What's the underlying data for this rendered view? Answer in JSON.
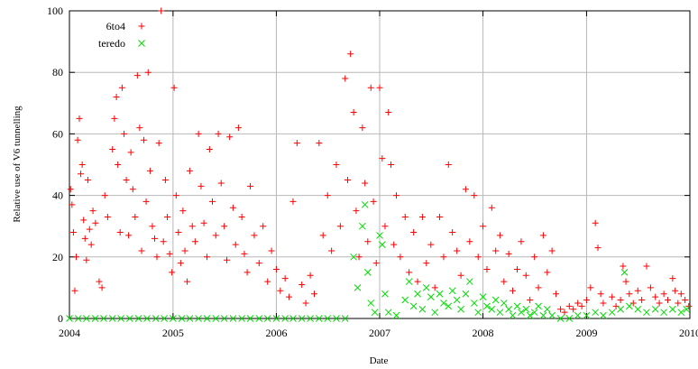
{
  "chart_data": {
    "type": "scatter",
    "title": "",
    "xlabel": "Date",
    "ylabel": "Relative use of V6 tunnelling",
    "xlim": [
      "2004-01-01",
      "2010-01-01"
    ],
    "ylim": [
      0,
      100
    ],
    "x_ticks": [
      "2004",
      "2005",
      "2006",
      "2007",
      "2008",
      "2009",
      "2010"
    ],
    "y_ticks": [
      "0",
      "20",
      "40",
      "60",
      "80",
      "100"
    ],
    "grid": true,
    "legend_position": "top-left",
    "series": [
      {
        "name": "6to4",
        "marker": "plus",
        "color": "#ff0000",
        "points": [
          [
            "2004-01-05",
            42
          ],
          [
            "2004-01-10",
            37
          ],
          [
            "2004-01-15",
            28
          ],
          [
            "2004-01-20",
            9
          ],
          [
            "2004-01-25",
            20
          ],
          [
            "2004-01-30",
            58
          ],
          [
            "2004-02-05",
            65
          ],
          [
            "2004-02-10",
            47
          ],
          [
            "2004-02-15",
            50
          ],
          [
            "2004-02-20",
            32
          ],
          [
            "2004-02-25",
            26
          ],
          [
            "2004-03-01",
            19
          ],
          [
            "2004-03-06",
            45
          ],
          [
            "2004-03-12",
            29
          ],
          [
            "2004-03-18",
            24
          ],
          [
            "2004-03-24",
            35
          ],
          [
            "2004-04-02",
            31
          ],
          [
            "2004-04-15",
            12
          ],
          [
            "2004-04-25",
            10
          ],
          [
            "2004-05-05",
            40
          ],
          [
            "2004-05-15",
            33
          ],
          [
            "2004-06-01",
            55
          ],
          [
            "2004-06-08",
            65
          ],
          [
            "2004-06-15",
            72
          ],
          [
            "2004-06-20",
            50
          ],
          [
            "2004-06-28",
            28
          ],
          [
            "2004-07-05",
            75
          ],
          [
            "2004-07-12",
            60
          ],
          [
            "2004-07-20",
            45
          ],
          [
            "2004-07-28",
            27
          ],
          [
            "2004-08-05",
            54
          ],
          [
            "2004-08-12",
            42
          ],
          [
            "2004-08-20",
            33
          ],
          [
            "2004-08-28",
            79
          ],
          [
            "2004-09-05",
            62
          ],
          [
            "2004-09-12",
            22
          ],
          [
            "2004-09-20",
            58
          ],
          [
            "2004-09-28",
            38
          ],
          [
            "2004-10-05",
            80
          ],
          [
            "2004-10-12",
            48
          ],
          [
            "2004-10-20",
            30
          ],
          [
            "2004-10-28",
            26
          ],
          [
            "2004-11-05",
            20
          ],
          [
            "2004-11-12",
            57
          ],
          [
            "2004-11-20",
            100
          ],
          [
            "2004-11-28",
            25
          ],
          [
            "2004-12-05",
            45
          ],
          [
            "2004-12-12",
            33
          ],
          [
            "2004-12-20",
            21
          ],
          [
            "2004-12-28",
            15
          ],
          [
            "2005-01-05",
            75
          ],
          [
            "2005-01-12",
            40
          ],
          [
            "2005-01-20",
            28
          ],
          [
            "2005-01-28",
            18
          ],
          [
            "2005-02-05",
            35
          ],
          [
            "2005-02-12",
            22
          ],
          [
            "2005-02-20",
            12
          ],
          [
            "2005-03-01",
            48
          ],
          [
            "2005-03-10",
            30
          ],
          [
            "2005-03-20",
            25
          ],
          [
            "2005-04-01",
            60
          ],
          [
            "2005-04-10",
            43
          ],
          [
            "2005-04-20",
            31
          ],
          [
            "2005-05-01",
            20
          ],
          [
            "2005-05-10",
            55
          ],
          [
            "2005-05-20",
            38
          ],
          [
            "2005-06-01",
            27
          ],
          [
            "2005-06-10",
            60
          ],
          [
            "2005-06-20",
            44
          ],
          [
            "2005-07-01",
            30
          ],
          [
            "2005-07-10",
            19
          ],
          [
            "2005-07-20",
            59
          ],
          [
            "2005-08-01",
            36
          ],
          [
            "2005-08-10",
            24
          ],
          [
            "2005-08-20",
            62
          ],
          [
            "2005-09-01",
            33
          ],
          [
            "2005-09-10",
            21
          ],
          [
            "2005-09-20",
            15
          ],
          [
            "2005-10-01",
            43
          ],
          [
            "2005-10-15",
            27
          ],
          [
            "2005-11-01",
            18
          ],
          [
            "2005-11-15",
            30
          ],
          [
            "2005-12-01",
            12
          ],
          [
            "2005-12-15",
            22
          ],
          [
            "2006-01-01",
            16
          ],
          [
            "2006-01-15",
            9
          ],
          [
            "2006-02-01",
            13
          ],
          [
            "2006-02-15",
            7
          ],
          [
            "2006-03-01",
            38
          ],
          [
            "2006-03-15",
            57
          ],
          [
            "2006-04-01",
            11
          ],
          [
            "2006-04-15",
            5
          ],
          [
            "2006-05-01",
            14
          ],
          [
            "2006-05-15",
            8
          ],
          [
            "2006-06-01",
            57
          ],
          [
            "2006-06-15",
            27
          ],
          [
            "2006-07-01",
            40
          ],
          [
            "2006-07-15",
            22
          ],
          [
            "2006-08-01",
            50
          ],
          [
            "2006-08-15",
            30
          ],
          [
            "2006-09-01",
            78
          ],
          [
            "2006-09-10",
            45
          ],
          [
            "2006-09-20",
            86
          ],
          [
            "2006-10-01",
            67
          ],
          [
            "2006-10-10",
            35
          ],
          [
            "2006-10-20",
            20
          ],
          [
            "2006-11-01",
            62
          ],
          [
            "2006-11-10",
            44
          ],
          [
            "2006-11-20",
            25
          ],
          [
            "2006-12-01",
            75
          ],
          [
            "2006-12-10",
            38
          ],
          [
            "2006-12-20",
            18
          ],
          [
            "2007-01-01",
            75
          ],
          [
            "2007-01-10",
            52
          ],
          [
            "2007-01-20",
            30
          ],
          [
            "2007-02-01",
            67
          ],
          [
            "2007-02-10",
            50
          ],
          [
            "2007-02-20",
            24
          ],
          [
            "2007-03-01",
            40
          ],
          [
            "2007-03-15",
            20
          ],
          [
            "2007-04-01",
            33
          ],
          [
            "2007-04-15",
            15
          ],
          [
            "2007-05-01",
            28
          ],
          [
            "2007-05-15",
            12
          ],
          [
            "2007-06-01",
            33
          ],
          [
            "2007-06-15",
            18
          ],
          [
            "2007-07-01",
            24
          ],
          [
            "2007-07-15",
            10
          ],
          [
            "2007-08-01",
            33
          ],
          [
            "2007-08-15",
            20
          ],
          [
            "2007-09-01",
            50
          ],
          [
            "2007-09-15",
            28
          ],
          [
            "2007-10-01",
            22
          ],
          [
            "2007-10-15",
            14
          ],
          [
            "2007-11-01",
            42
          ],
          [
            "2007-11-15",
            25
          ],
          [
            "2007-12-01",
            40
          ],
          [
            "2007-12-15",
            20
          ],
          [
            "2008-01-01",
            30
          ],
          [
            "2008-01-15",
            16
          ],
          [
            "2008-02-01",
            36
          ],
          [
            "2008-02-15",
            22
          ],
          [
            "2008-03-01",
            27
          ],
          [
            "2008-03-15",
            12
          ],
          [
            "2008-04-01",
            21
          ],
          [
            "2008-04-15",
            9
          ],
          [
            "2008-05-01",
            16
          ],
          [
            "2008-05-15",
            25
          ],
          [
            "2008-06-01",
            14
          ],
          [
            "2008-06-15",
            6
          ],
          [
            "2008-07-01",
            20
          ],
          [
            "2008-07-15",
            10
          ],
          [
            "2008-08-01",
            27
          ],
          [
            "2008-08-15",
            15
          ],
          [
            "2008-09-01",
            22
          ],
          [
            "2008-09-15",
            8
          ],
          [
            "2008-10-01",
            3
          ],
          [
            "2008-10-15",
            2
          ],
          [
            "2008-11-01",
            4
          ],
          [
            "2008-11-15",
            3
          ],
          [
            "2008-12-01",
            5
          ],
          [
            "2008-12-15",
            4
          ],
          [
            "2009-01-01",
            6
          ],
          [
            "2009-01-15",
            10
          ],
          [
            "2009-02-01",
            31
          ],
          [
            "2009-02-10",
            23
          ],
          [
            "2009-02-20",
            8
          ],
          [
            "2009-03-01",
            5
          ],
          [
            "2009-04-01",
            7
          ],
          [
            "2009-04-15",
            4
          ],
          [
            "2009-05-01",
            6
          ],
          [
            "2009-05-10",
            17
          ],
          [
            "2009-05-20",
            12
          ],
          [
            "2009-06-01",
            8
          ],
          [
            "2009-06-15",
            5
          ],
          [
            "2009-07-01",
            9
          ],
          [
            "2009-07-15",
            6
          ],
          [
            "2009-08-01",
            17
          ],
          [
            "2009-08-15",
            10
          ],
          [
            "2009-09-01",
            7
          ],
          [
            "2009-09-15",
            5
          ],
          [
            "2009-10-01",
            8
          ],
          [
            "2009-10-15",
            6
          ],
          [
            "2009-11-01",
            13
          ],
          [
            "2009-11-10",
            9
          ],
          [
            "2009-11-20",
            5
          ],
          [
            "2009-12-01",
            8
          ],
          [
            "2009-12-15",
            6
          ],
          [
            "2009-12-28",
            4
          ]
        ]
      },
      {
        "name": "teredo",
        "marker": "cross",
        "color": "#00dd00",
        "points": [
          [
            "2004-01-01",
            0
          ],
          [
            "2004-02-01",
            0
          ],
          [
            "2004-03-01",
            0
          ],
          [
            "2004-04-01",
            0
          ],
          [
            "2004-05-01",
            0
          ],
          [
            "2004-06-01",
            0
          ],
          [
            "2004-07-01",
            0
          ],
          [
            "2004-08-01",
            0
          ],
          [
            "2004-09-01",
            0
          ],
          [
            "2004-10-01",
            0
          ],
          [
            "2004-11-01",
            0
          ],
          [
            "2004-12-01",
            0
          ],
          [
            "2005-01-01",
            0
          ],
          [
            "2005-02-01",
            0
          ],
          [
            "2005-03-01",
            0
          ],
          [
            "2005-04-01",
            0
          ],
          [
            "2005-05-01",
            0
          ],
          [
            "2005-06-01",
            0
          ],
          [
            "2005-07-01",
            0
          ],
          [
            "2005-08-01",
            0
          ],
          [
            "2005-09-01",
            0
          ],
          [
            "2005-10-01",
            0
          ],
          [
            "2005-11-01",
            0
          ],
          [
            "2005-12-01",
            0
          ],
          [
            "2006-01-01",
            0
          ],
          [
            "2006-02-01",
            0
          ],
          [
            "2006-03-01",
            0
          ],
          [
            "2006-04-01",
            0
          ],
          [
            "2006-05-01",
            0
          ],
          [
            "2006-06-01",
            0
          ],
          [
            "2006-07-01",
            0
          ],
          [
            "2006-08-01",
            0
          ],
          [
            "2006-09-01",
            0
          ],
          [
            "2006-10-01",
            20
          ],
          [
            "2006-10-15",
            10
          ],
          [
            "2006-11-01",
            30
          ],
          [
            "2006-11-10",
            37
          ],
          [
            "2006-11-20",
            15
          ],
          [
            "2006-12-01",
            5
          ],
          [
            "2006-12-15",
            2
          ],
          [
            "2007-01-01",
            27
          ],
          [
            "2007-01-10",
            24
          ],
          [
            "2007-01-20",
            8
          ],
          [
            "2007-02-01",
            2
          ],
          [
            "2007-03-01",
            1
          ],
          [
            "2007-04-01",
            6
          ],
          [
            "2007-04-15",
            12
          ],
          [
            "2007-05-01",
            4
          ],
          [
            "2007-05-15",
            8
          ],
          [
            "2007-06-01",
            3
          ],
          [
            "2007-06-15",
            10
          ],
          [
            "2007-07-01",
            7
          ],
          [
            "2007-07-15",
            2
          ],
          [
            "2007-08-01",
            8
          ],
          [
            "2007-08-15",
            5
          ],
          [
            "2007-09-01",
            4
          ],
          [
            "2007-09-15",
            9
          ],
          [
            "2007-10-01",
            6
          ],
          [
            "2007-10-15",
            3
          ],
          [
            "2007-11-01",
            8
          ],
          [
            "2007-11-15",
            12
          ],
          [
            "2007-12-01",
            5
          ],
          [
            "2007-12-15",
            2
          ],
          [
            "2008-01-01",
            7
          ],
          [
            "2008-01-15",
            4
          ],
          [
            "2008-02-01",
            3
          ],
          [
            "2008-02-15",
            6
          ],
          [
            "2008-03-01",
            2
          ],
          [
            "2008-03-15",
            5
          ],
          [
            "2008-04-01",
            3
          ],
          [
            "2008-04-15",
            1
          ],
          [
            "2008-05-01",
            4
          ],
          [
            "2008-05-15",
            2
          ],
          [
            "2008-06-01",
            3
          ],
          [
            "2008-06-15",
            1
          ],
          [
            "2008-07-01",
            2
          ],
          [
            "2008-07-15",
            4
          ],
          [
            "2008-08-01",
            1
          ],
          [
            "2008-08-15",
            3
          ],
          [
            "2008-09-01",
            1
          ],
          [
            "2008-10-01",
            0
          ],
          [
            "2008-11-01",
            0
          ],
          [
            "2008-12-01",
            1
          ],
          [
            "2009-01-01",
            1
          ],
          [
            "2009-02-01",
            2
          ],
          [
            "2009-03-01",
            1
          ],
          [
            "2009-04-01",
            2
          ],
          [
            "2009-05-01",
            3
          ],
          [
            "2009-05-15",
            15
          ],
          [
            "2009-06-01",
            4
          ],
          [
            "2009-07-01",
            3
          ],
          [
            "2009-08-01",
            2
          ],
          [
            "2009-09-01",
            3
          ],
          [
            "2009-10-01",
            2
          ],
          [
            "2009-11-01",
            3
          ],
          [
            "2009-12-01",
            2
          ],
          [
            "2009-12-20",
            3
          ]
        ]
      }
    ]
  }
}
